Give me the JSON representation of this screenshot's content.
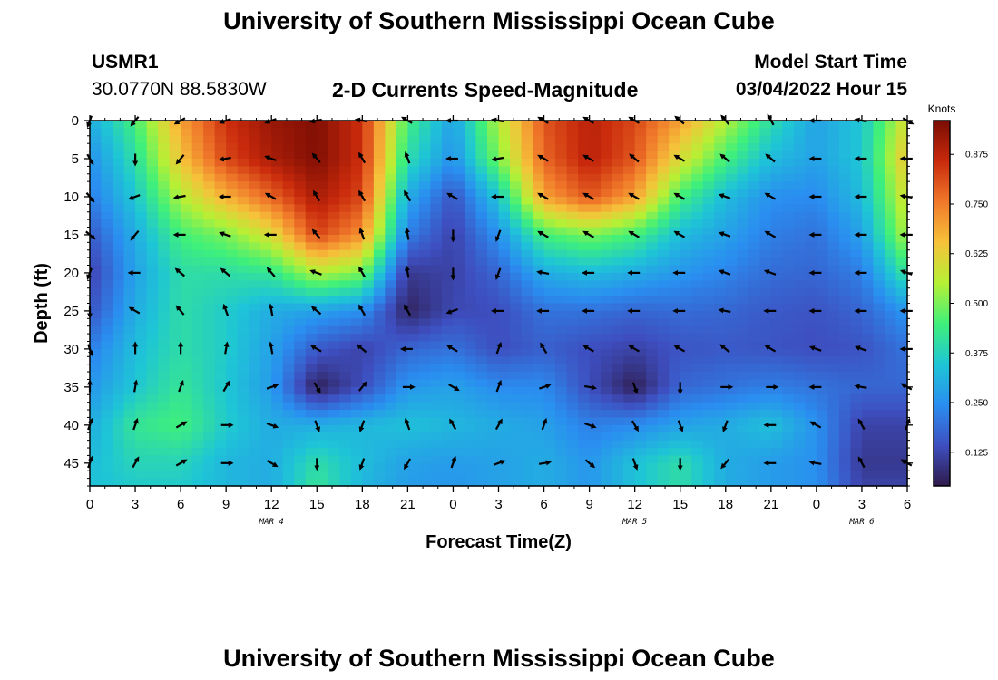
{
  "page": {
    "title": "University of Southern Mississippi Ocean Cube",
    "station_id": "USMR1",
    "coords": "30.0770N  88.5830W",
    "product_title": "2-D Currents Speed-Magnitude",
    "model_start_label": "Model Start Time",
    "model_start_value": "03/04/2022 Hour 15",
    "footer_title": "University of Southern Mississippi Ocean Cube"
  },
  "colors": {
    "stops": [
      "#2f1a4a",
      "#3e4fc0",
      "#2a8ef0",
      "#1ec5d6",
      "#3ff07a",
      "#b6f035",
      "#f6c23a",
      "#f0782a",
      "#c92a0c",
      "#7a0c03"
    ],
    "arrow": "#000000",
    "axis": "#000000"
  },
  "chart_data": {
    "type": "heatmap",
    "title": "2-D Currents Speed-Magnitude",
    "xlabel": "Forecast Time(Z)",
    "ylabel": "Depth (ft)",
    "x_tick_labels": [
      "0",
      "3",
      "6",
      "9",
      "12",
      "15",
      "18",
      "21",
      "0",
      "3",
      "6",
      "9",
      "12",
      "15",
      "18",
      "21",
      "0",
      "3",
      "6"
    ],
    "x_range_hours": [
      0,
      54
    ],
    "date_labels": [
      {
        "label": "MAR 4",
        "hour": 12
      },
      {
        "label": "MAR 5",
        "hour": 36
      },
      {
        "label": "MAR 6",
        "hour": 51
      }
    ],
    "y_ticks": [
      0,
      5,
      10,
      15,
      20,
      25,
      30,
      35,
      40,
      45
    ],
    "ylim": [
      0,
      48
    ],
    "colorbar": {
      "label": "Knots",
      "ticks": [
        "0.125",
        "0.250",
        "0.375",
        "0.500",
        "0.625",
        "0.750",
        "0.875"
      ],
      "tick_values": [
        0.125,
        0.25,
        0.375,
        0.5,
        0.625,
        0.75,
        0.875
      ],
      "range": [
        0.04,
        0.96
      ]
    },
    "grid_hours": [
      0,
      3,
      6,
      9,
      12,
      15,
      18,
      21,
      24,
      27,
      30,
      33,
      36,
      39,
      42,
      45,
      48,
      51,
      54
    ],
    "grid_depths": [
      0,
      5,
      10,
      15,
      20,
      25,
      30,
      35,
      40,
      45,
      48
    ],
    "speed_knots": [
      [
        0.3,
        0.45,
        0.7,
        0.85,
        0.92,
        0.95,
        0.85,
        0.45,
        0.28,
        0.55,
        0.8,
        0.88,
        0.82,
        0.7,
        0.55,
        0.4,
        0.28,
        0.35,
        0.6
      ],
      [
        0.25,
        0.4,
        0.65,
        0.82,
        0.9,
        0.95,
        0.85,
        0.4,
        0.25,
        0.5,
        0.78,
        0.88,
        0.8,
        0.6,
        0.45,
        0.33,
        0.28,
        0.35,
        0.65
      ],
      [
        0.22,
        0.35,
        0.55,
        0.68,
        0.78,
        0.9,
        0.82,
        0.3,
        0.15,
        0.35,
        0.7,
        0.8,
        0.7,
        0.45,
        0.33,
        0.25,
        0.24,
        0.33,
        0.6
      ],
      [
        0.16,
        0.3,
        0.45,
        0.5,
        0.6,
        0.82,
        0.72,
        0.22,
        0.12,
        0.25,
        0.45,
        0.5,
        0.45,
        0.33,
        0.28,
        0.22,
        0.2,
        0.28,
        0.55
      ],
      [
        0.12,
        0.28,
        0.4,
        0.4,
        0.42,
        0.55,
        0.5,
        0.1,
        0.12,
        0.18,
        0.3,
        0.33,
        0.3,
        0.26,
        0.23,
        0.19,
        0.18,
        0.22,
        0.42
      ],
      [
        0.15,
        0.3,
        0.4,
        0.36,
        0.3,
        0.28,
        0.25,
        0.06,
        0.13,
        0.14,
        0.2,
        0.2,
        0.18,
        0.19,
        0.18,
        0.16,
        0.15,
        0.18,
        0.26
      ],
      [
        0.22,
        0.33,
        0.4,
        0.36,
        0.28,
        0.16,
        0.12,
        0.18,
        0.2,
        0.14,
        0.17,
        0.14,
        0.12,
        0.15,
        0.16,
        0.15,
        0.14,
        0.15,
        0.2
      ],
      [
        0.26,
        0.35,
        0.42,
        0.35,
        0.27,
        0.05,
        0.14,
        0.26,
        0.28,
        0.24,
        0.24,
        0.14,
        0.05,
        0.18,
        0.2,
        0.22,
        0.2,
        0.18,
        0.18
      ],
      [
        0.3,
        0.42,
        0.45,
        0.36,
        0.3,
        0.3,
        0.32,
        0.34,
        0.32,
        0.3,
        0.28,
        0.22,
        0.24,
        0.28,
        0.3,
        0.34,
        0.25,
        0.12,
        0.12
      ],
      [
        0.33,
        0.38,
        0.38,
        0.32,
        0.3,
        0.4,
        0.33,
        0.28,
        0.27,
        0.28,
        0.3,
        0.26,
        0.34,
        0.4,
        0.3,
        0.27,
        0.25,
        0.1,
        0.1
      ],
      [
        0.34,
        0.36,
        0.36,
        0.32,
        0.3,
        0.42,
        0.32,
        0.27,
        0.26,
        0.28,
        0.3,
        0.26,
        0.34,
        0.4,
        0.3,
        0.27,
        0.25,
        0.12,
        0.12
      ]
    ],
    "vector_hours": [
      0,
      3,
      6,
      9,
      12,
      15,
      18,
      21,
      24,
      27,
      30,
      33,
      36,
      39,
      42,
      45,
      48,
      51,
      54
    ],
    "vector_depths": [
      0,
      5,
      10,
      15,
      20,
      25,
      30,
      35,
      40,
      45
    ],
    "vector_direction_deg": [
      [
        200,
        220,
        240,
        250,
        250,
        260,
        280,
        300,
        270,
        280,
        300,
        300,
        300,
        310,
        320,
        330,
        270,
        280,
        120
      ],
      [
        150,
        180,
        220,
        260,
        290,
        320,
        330,
        340,
        270,
        260,
        300,
        300,
        310,
        300,
        310,
        310,
        270,
        270,
        270
      ],
      [
        140,
        250,
        260,
        270,
        300,
        330,
        330,
        330,
        300,
        270,
        300,
        300,
        300,
        300,
        290,
        300,
        270,
        270,
        280
      ],
      [
        130,
        220,
        270,
        290,
        270,
        320,
        340,
        350,
        180,
        200,
        300,
        300,
        300,
        300,
        290,
        300,
        270,
        270,
        270
      ],
      [
        200,
        270,
        310,
        310,
        320,
        290,
        330,
        350,
        180,
        200,
        280,
        270,
        270,
        270,
        290,
        290,
        270,
        270,
        290
      ],
      [
        180,
        300,
        320,
        340,
        350,
        310,
        330,
        330,
        250,
        270,
        270,
        270,
        270,
        270,
        280,
        270,
        270,
        270,
        270
      ],
      [
        160,
        0,
        0,
        10,
        350,
        300,
        310,
        270,
        300,
        20,
        330,
        300,
        300,
        300,
        310,
        300,
        290,
        290,
        270
      ],
      [
        0,
        10,
        20,
        30,
        70,
        150,
        40,
        90,
        120,
        20,
        70,
        100,
        160,
        180,
        90,
        90,
        270,
        280,
        300
      ],
      [
        20,
        20,
        60,
        90,
        110,
        160,
        200,
        340,
        330,
        30,
        20,
        110,
        150,
        160,
        200,
        270,
        300,
        330,
        20
      ],
      [
        20,
        30,
        60,
        90,
        120,
        180,
        200,
        210,
        20,
        70,
        80,
        130,
        160,
        180,
        220,
        270,
        280,
        330,
        300
      ]
    ]
  }
}
